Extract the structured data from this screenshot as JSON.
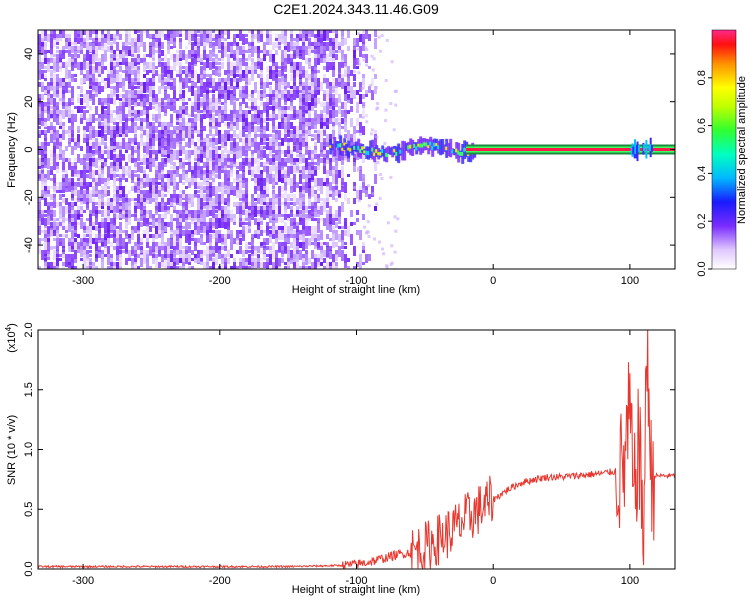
{
  "title": "C2E1.2024.343.11.46.G09",
  "chart_data": [
    {
      "type": "heatmap",
      "name": "spectrogram",
      "xlabel": "Height of straight line (km)",
      "ylabel": "Frequency (Hz)",
      "xlim": [
        -333,
        133
      ],
      "ylim": [
        -50,
        50
      ],
      "xticks": [
        -300,
        -200,
        -100,
        0,
        100
      ],
      "yticks": [
        -40,
        -20,
        0,
        20,
        40
      ],
      "noise_region_end_km": -100,
      "signal_track": {
        "x_start": -120,
        "x_end": 133,
        "freq_hz": 0,
        "strong_from_km": -20
      },
      "colorbar": {
        "label": "Normalized spectral amplitude",
        "range": [
          0,
          1
        ],
        "ticks": [
          "0.0",
          "0.2",
          "0.4",
          "0.6",
          "0.8"
        ]
      }
    },
    {
      "type": "line",
      "name": "snr",
      "xlabel": "Height of straight line (km)",
      "ylabel": "SNR (10 * v/v)",
      "multiplier": "(x10^4)",
      "multiplier_base": "(x10",
      "multiplier_exp": "4",
      "multiplier_close": ")",
      "xlim": [
        -333,
        133
      ],
      "ylim": [
        0,
        2.0
      ],
      "xticks": [
        -300,
        -200,
        -100,
        0,
        100
      ],
      "yticks": [
        "0.0",
        "0.5",
        "1.0",
        "1.5",
        "2.0"
      ],
      "series": [
        {
          "color": "#e8372e",
          "x": [
            -333,
            -300,
            -250,
            -200,
            -150,
            -110,
            -100,
            -90,
            -80,
            -70,
            -60,
            -50,
            -40,
            -30,
            -20,
            -10,
            0,
            10,
            20,
            30,
            40,
            50,
            60,
            70,
            80,
            90,
            95,
            100,
            103,
            106,
            110,
            113,
            115,
            120,
            133
          ],
          "y": [
            0.02,
            0.02,
            0.02,
            0.02,
            0.02,
            0.03,
            0.04,
            0.06,
            0.09,
            0.12,
            0.14,
            0.18,
            0.25,
            0.32,
            0.42,
            0.5,
            0.58,
            0.66,
            0.72,
            0.75,
            0.77,
            0.77,
            0.78,
            0.79,
            0.8,
            0.82,
            0.8,
            1.3,
            0.5,
            1.1,
            0.35,
            2.0,
            0.78,
            0.78,
            0.78
          ]
        }
      ]
    }
  ]
}
